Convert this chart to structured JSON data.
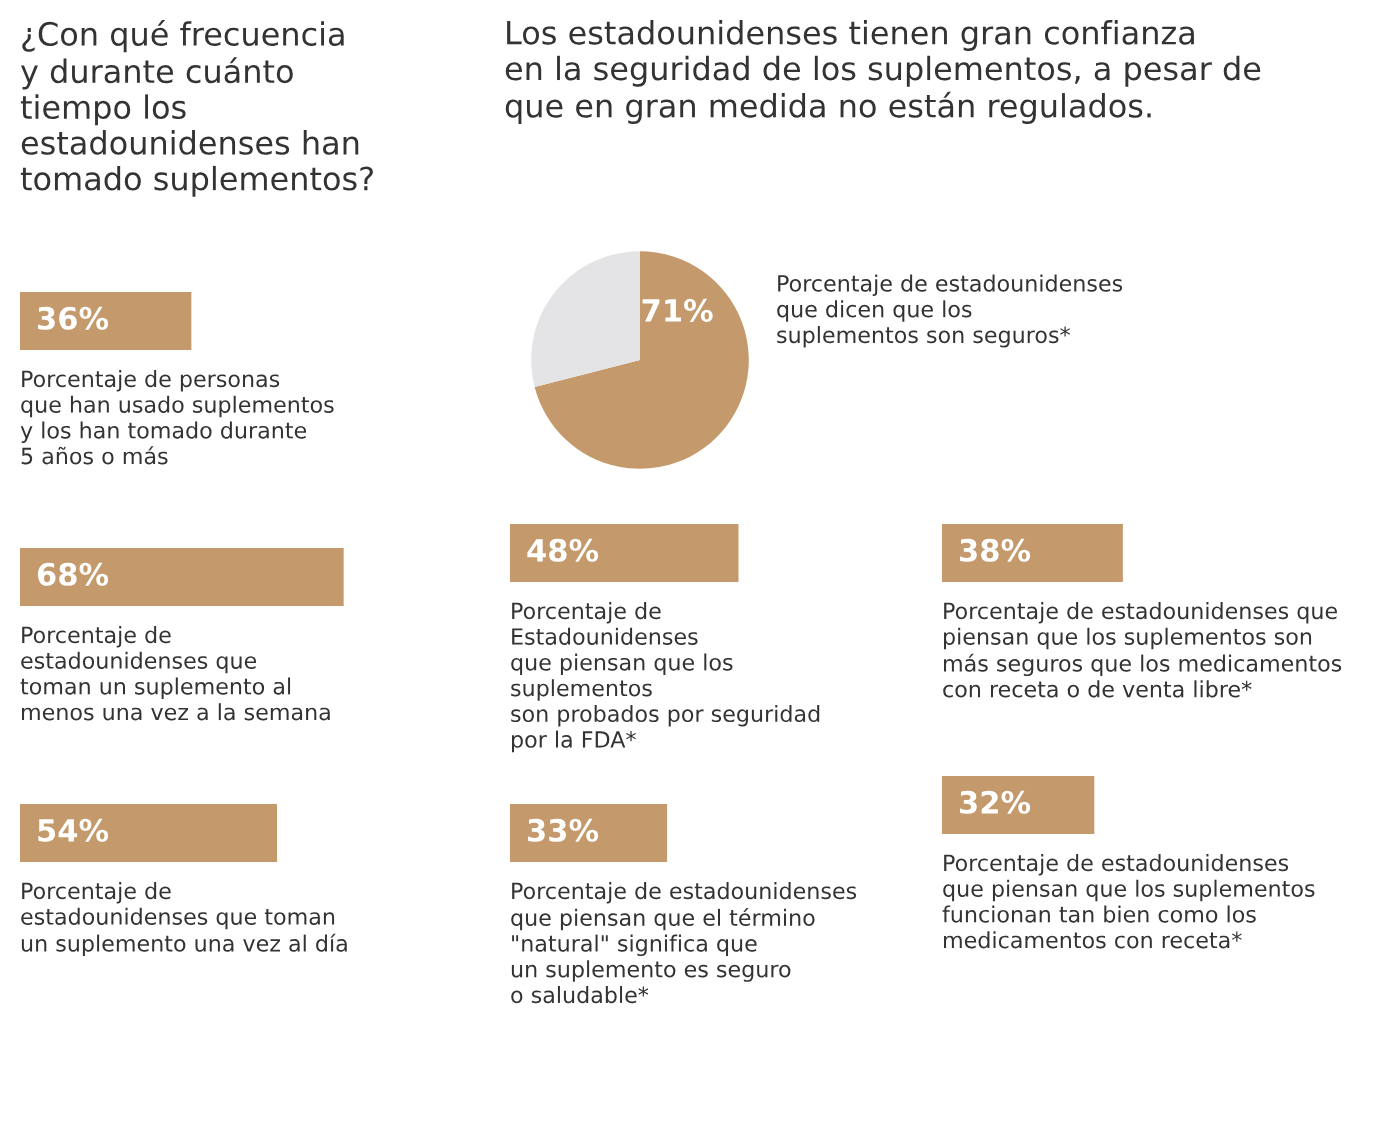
{
  "chart_data": [
    {
      "type": "bar",
      "orientation": "horizontal",
      "title": "¿Con qué frecuencia\ny durante cuánto\ntiempo los\nestadounidenses han\ntomado suplementos?",
      "categories": [
        "Porcentaje de personas\nque han usado suplementos\ny los han tomado durante\n5 años o más",
        "Porcentaje de\nestadounidenses que\ntoman un suplemento al\nmenos una vez a la semana",
        "Porcentaje de\nestadounidenses que toman\nun suplemento una vez al día"
      ],
      "values": [
        36,
        68,
        54
      ],
      "value_labels": [
        "36%",
        "68%",
        "54%"
      ],
      "color": "#c49a6c"
    },
    {
      "type": "pie",
      "title": "Los estadounidenses tienen gran confianza\nen la seguridad de los suplementos, a pesar de\nque en gran medida no están regulados.",
      "categories": [
        "Porcentaje de estadounidenses\nque dicen que los\nsuplementos son seguros*",
        null
      ],
      "values": [
        71,
        29
      ],
      "value_labels": [
        "71%",
        null
      ],
      "colors": [
        "#c49a6c",
        "#e4e4e6"
      ]
    },
    {
      "type": "bar",
      "orientation": "horizontal",
      "categories": [
        "Porcentaje de\nEstadounidenses\nque piensan que los\nsuplementos\nson probados por seguridad\npor la FDA*",
        "Porcentaje de estadounidenses\nque piensan que el término\n\"natural\" significa que\nun suplemento es seguro\no saludable*"
      ],
      "values": [
        48,
        33
      ],
      "value_labels": [
        "48%",
        "33%"
      ],
      "color": "#c49a6c"
    },
    {
      "type": "bar",
      "orientation": "horizontal",
      "categories": [
        "Porcentaje de estadounidenses que\npiensan que los suplementos son\nmás seguros que los medicamentos\ncon receta o de venta libre*",
        "Porcentaje de estadounidenses\nque piensan que los suplementos\nfuncionan tan bien como los\nmedicamentos con receta*"
      ],
      "values": [
        38,
        32
      ],
      "value_labels": [
        "38%",
        "32%"
      ],
      "color": "#c49a6c"
    }
  ]
}
